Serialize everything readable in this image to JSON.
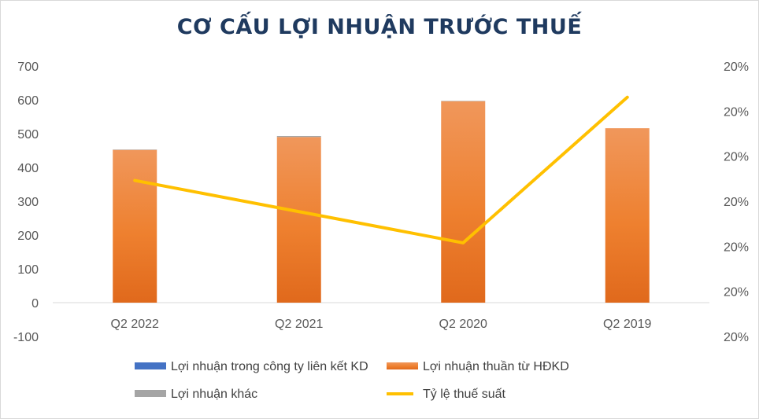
{
  "chart_data": {
    "type": "bar",
    "title": "CƠ CẤU LỢI NHUẬN TRƯỚC THUẾ",
    "categories": [
      "Q2 2022",
      "Q2 2021",
      "Q2 2020",
      "Q2 2019"
    ],
    "y_ticks": [
      "700",
      "600",
      "500",
      "400",
      "300",
      "200",
      "100",
      "0",
      "-100"
    ],
    "y2_ticks": [
      "20%",
      "20%",
      "20%",
      "20%",
      "20%",
      "20%",
      "20%"
    ],
    "ylim": [
      -100,
      700
    ],
    "grid": false,
    "legend_position": "bottom",
    "series": [
      {
        "name": "Lợi nhuận trong công ty liên kết KD",
        "type": "bar",
        "color": "#4472c4",
        "values": [
          0,
          0,
          0,
          0
        ]
      },
      {
        "name": "Lợi nhuận thuần từ HĐKD",
        "type": "bar",
        "color": "#ed7d31",
        "values": [
          452,
          490,
          596,
          516
        ]
      },
      {
        "name": "Lợi nhuận khác",
        "type": "bar",
        "color": "#a5a5a5",
        "values": [
          1,
          3,
          1,
          0
        ]
      },
      {
        "name": "Tỷ lệ thuế suất",
        "type": "line",
        "axis": "secondary",
        "color": "#ffc000",
        "values": [
          0.2005,
          0.2002,
          0.1999,
          0.2013
        ]
      }
    ],
    "y2lim": [
      0.199,
      0.2016
    ]
  }
}
